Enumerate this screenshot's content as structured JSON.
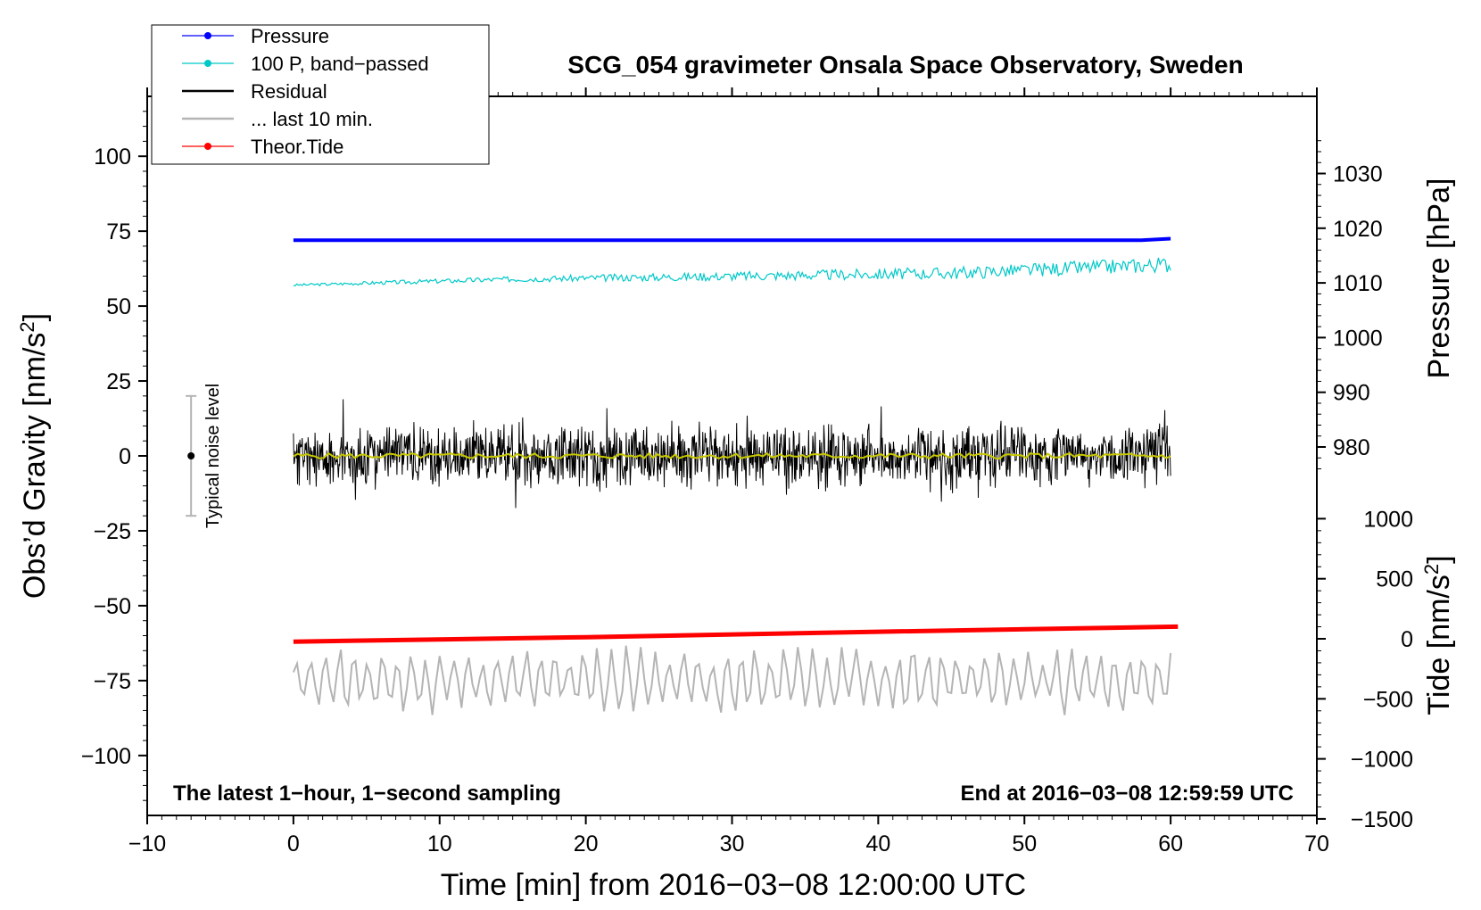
{
  "chart_data": {
    "type": "line",
    "title": "SCG_054 gravimeter Onsala Space Observatory, Sweden",
    "xlabel": "Time [min] from 2016−03−08 12:00:00 UTC",
    "ylabel": "Obs’d Gravity [nm/s²]",
    "ylabel_main": "Obs’d Gravity [nm/s",
    "ylabel_sup": "2",
    "ylabel_end": "]",
    "xlim": [
      -10,
      70
    ],
    "ylim": [
      -120,
      120
    ],
    "x_ticks": [
      -10,
      0,
      10,
      20,
      30,
      40,
      50,
      60,
      70
    ],
    "x_tick_labels": [
      "−10",
      "0",
      "10",
      "20",
      "30",
      "40",
      "50",
      "60",
      "70"
    ],
    "y_ticks": [
      -100,
      -75,
      -50,
      -25,
      0,
      25,
      50,
      75,
      100
    ],
    "y_tick_labels": [
      "−100",
      "−75",
      "−50",
      "−25",
      "0",
      "25",
      "50",
      "75",
      "100"
    ],
    "pressure_axis": {
      "label": "Pressure [hPa]",
      "ticks": [
        980,
        990,
        1000,
        1010,
        1020,
        1030
      ],
      "tick_labels": [
        "980",
        "990",
        "1000",
        "1010",
        "1020",
        "1030"
      ]
    },
    "tide_axis": {
      "label": "Tide [nm/s²]",
      "label_main": "Tide [nm/s",
      "label_sup": "2",
      "label_end": "]",
      "ticks": [
        1000,
        500,
        0,
        -500,
        -1000,
        -1500
      ],
      "tick_labels": [
        "1000",
        "500",
        "0",
        "−500",
        "−1000",
        "−1500"
      ]
    },
    "legend": {
      "position": "top-left",
      "entries": [
        {
          "label": "Pressure",
          "color": "#0000ff",
          "marker": true
        },
        {
          "label": "100 P, band−passed",
          "color": "#00c8c8",
          "marker": true
        },
        {
          "label": "Residual",
          "color": "#000000",
          "marker": false
        },
        {
          "label": "... last 10 min.",
          "color": "#b4b4b4",
          "marker": false
        },
        {
          "label": "Theor.Tide",
          "color": "#ff0000",
          "marker": true
        }
      ]
    },
    "series": [
      {
        "name": "Pressure",
        "color": "#0000ff",
        "x": [
          0,
          30,
          58,
          60
        ],
        "y": [
          72,
          72,
          72,
          72.5
        ]
      },
      {
        "name": "100 P, band−passed",
        "color": "#00c8c8",
        "x": [
          0,
          15,
          30,
          45,
          60
        ],
        "y": [
          57,
          59,
          60,
          61,
          64
        ]
      },
      {
        "name": "Residual",
        "color": "#000000",
        "x": [
          0,
          60
        ],
        "y": [
          0,
          0
        ],
        "amplitude": 12
      },
      {
        "name": "Smoothed residual",
        "color": "#c8c800",
        "x": [
          0,
          60
        ],
        "y": [
          0,
          0
        ]
      },
      {
        "name": "Theor.Tide",
        "color": "#ff0000",
        "x": [
          0,
          20,
          40,
          60.5
        ],
        "y": [
          -62,
          -60.5,
          -58.7,
          -57
        ]
      },
      {
        "name": "... last 10 min.",
        "color": "#b4b4b4",
        "x": [
          0,
          60
        ],
        "y": [
          -75,
          -75
        ],
        "amplitude": 10
      }
    ],
    "noise_bar": {
      "label": "Typical noise level",
      "x": -7,
      "center": 0,
      "low": -20,
      "high": 20
    },
    "annotations": {
      "left": "The latest 1−hour, 1−second sampling",
      "right": "End at 2016−03−08 12:59:59 UTC"
    },
    "grid": false
  }
}
